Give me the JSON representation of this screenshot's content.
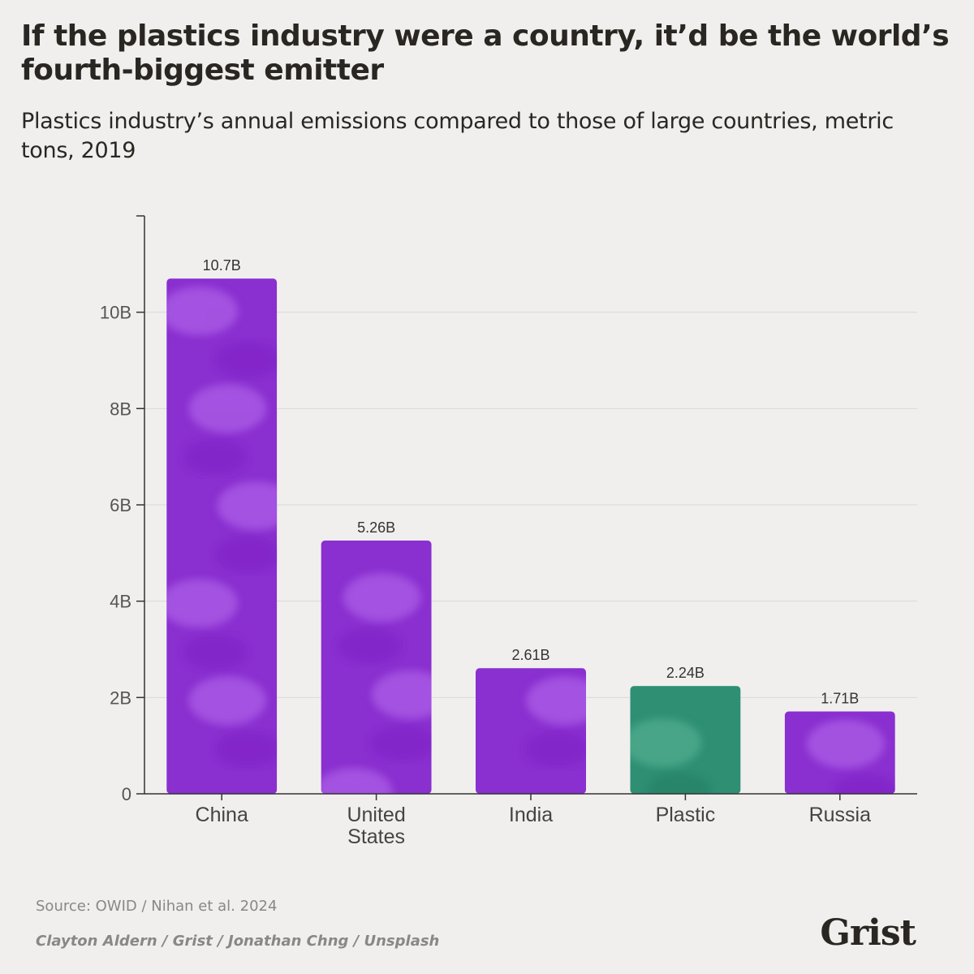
{
  "title": "If the plastics industry were a country, it’d be the world’s fourth-biggest emitter",
  "subtitle": "Plastics industry’s annual emissions compared to those of large countries, metric tons, 2019",
  "source": "Source: OWID / Nihan et al. 2024",
  "credit": "Clayton Aldern / Grist / Jonathan Chng / Unsplash",
  "logo": "Grist",
  "chart_data": {
    "type": "bar",
    "categories": [
      [
        "China"
      ],
      [
        "United",
        "States"
      ],
      [
        "India"
      ],
      [
        "Plastic"
      ],
      [
        "Russia"
      ]
    ],
    "values": [
      10.7,
      5.26,
      2.61,
      2.24,
      1.71
    ],
    "value_labels": [
      "10.7B",
      "5.26B",
      "2.61B",
      "2.24B",
      "1.71B"
    ],
    "ylim": [
      0,
      12
    ],
    "yticks": [
      0,
      2,
      4,
      6,
      8,
      10
    ],
    "ytick_labels": [
      "0",
      "2B",
      "4B",
      "6B",
      "8B",
      "10B"
    ],
    "grid": true,
    "colors": {
      "country": "#8a2fd0",
      "country_dark": "#7a1fc2",
      "country_light": "#b870ee",
      "plastic": "#2e8f73",
      "plastic_dark": "#237a60",
      "plastic_light": "#5fb89a",
      "highlight": "Plastic"
    }
  }
}
